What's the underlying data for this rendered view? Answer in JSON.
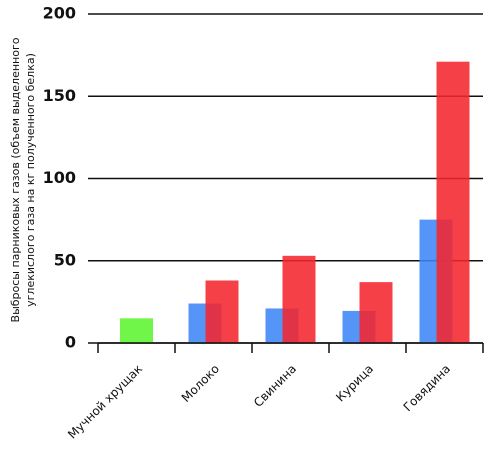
{
  "chart_data": {
    "type": "bar",
    "ylabel": [
      "Выбросы парниковых газов (объем выделенного",
      "углекислого газа на кг полученного белка)"
    ],
    "categories": [
      "Мучной хрущак",
      "Молоко",
      "Свинина",
      "Курица",
      "Говядина"
    ],
    "series": [
      {
        "color": "#5cf52f",
        "values": [
          15,
          null,
          null,
          null,
          null
        ]
      },
      {
        "color": "#3f86f7",
        "values": [
          null,
          24,
          21,
          19.5,
          75
        ]
      },
      {
        "color": "#f5262e",
        "values": [
          null,
          38,
          53,
          37,
          171
        ]
      }
    ],
    "ylim": [
      0,
      200
    ],
    "yticks": [
      0,
      50,
      100,
      150,
      200
    ],
    "grid": true
  }
}
